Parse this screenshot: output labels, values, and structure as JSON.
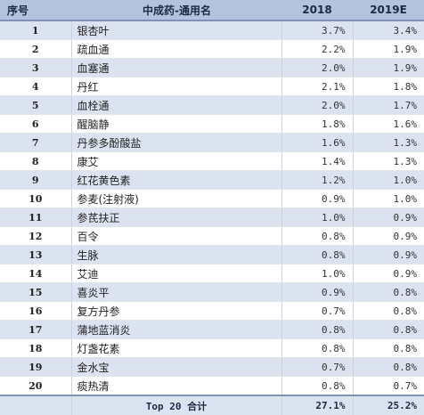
{
  "table": {
    "headers": {
      "no": "序号",
      "name": "中成药-通用名",
      "y2018": "2018",
      "y2019": "2019E"
    },
    "rows": [
      {
        "no": "1",
        "name": "银杏叶",
        "y2018": "3.7%",
        "y2019": "3.4%"
      },
      {
        "no": "2",
        "name": "疏血通",
        "y2018": "2.2%",
        "y2019": "1.9%"
      },
      {
        "no": "3",
        "name": "血塞通",
        "y2018": "2.0%",
        "y2019": "1.9%"
      },
      {
        "no": "4",
        "name": "丹红",
        "y2018": "2.1%",
        "y2019": "1.8%"
      },
      {
        "no": "5",
        "name": "血栓通",
        "y2018": "2.0%",
        "y2019": "1.7%"
      },
      {
        "no": "6",
        "name": "醒脑静",
        "y2018": "1.8%",
        "y2019": "1.6%"
      },
      {
        "no": "7",
        "name": "丹参多酚酸盐",
        "y2018": "1.6%",
        "y2019": "1.3%"
      },
      {
        "no": "8",
        "name": "康艾",
        "y2018": "1.4%",
        "y2019": "1.3%"
      },
      {
        "no": "9",
        "name": "红花黄色素",
        "y2018": "1.2%",
        "y2019": "1.0%"
      },
      {
        "no": "10",
        "name": "参麦(注射液)",
        "y2018": "0.9%",
        "y2019": "1.0%"
      },
      {
        "no": "11",
        "name": "参芪扶正",
        "y2018": "1.0%",
        "y2019": "0.9%"
      },
      {
        "no": "12",
        "name": "百令",
        "y2018": "0.8%",
        "y2019": "0.9%"
      },
      {
        "no": "13",
        "name": "生脉",
        "y2018": "0.8%",
        "y2019": "0.9%"
      },
      {
        "no": "14",
        "name": "艾迪",
        "y2018": "1.0%",
        "y2019": "0.9%"
      },
      {
        "no": "15",
        "name": "喜炎平",
        "y2018": "0.9%",
        "y2019": "0.8%"
      },
      {
        "no": "16",
        "name": "复方丹参",
        "y2018": "0.7%",
        "y2019": "0.8%"
      },
      {
        "no": "17",
        "name": "蒲地蓝消炎",
        "y2018": "0.8%",
        "y2019": "0.8%"
      },
      {
        "no": "18",
        "name": "灯盏花素",
        "y2018": "0.8%",
        "y2019": "0.8%"
      },
      {
        "no": "19",
        "name": "金水宝",
        "y2018": "0.7%",
        "y2019": "0.8%"
      },
      {
        "no": "20",
        "name": "痰热清",
        "y2018": "0.8%",
        "y2019": "0.7%"
      }
    ],
    "total": {
      "label": "Top 20 合计",
      "y2018": "27.1%",
      "y2019": "25.2%"
    }
  }
}
